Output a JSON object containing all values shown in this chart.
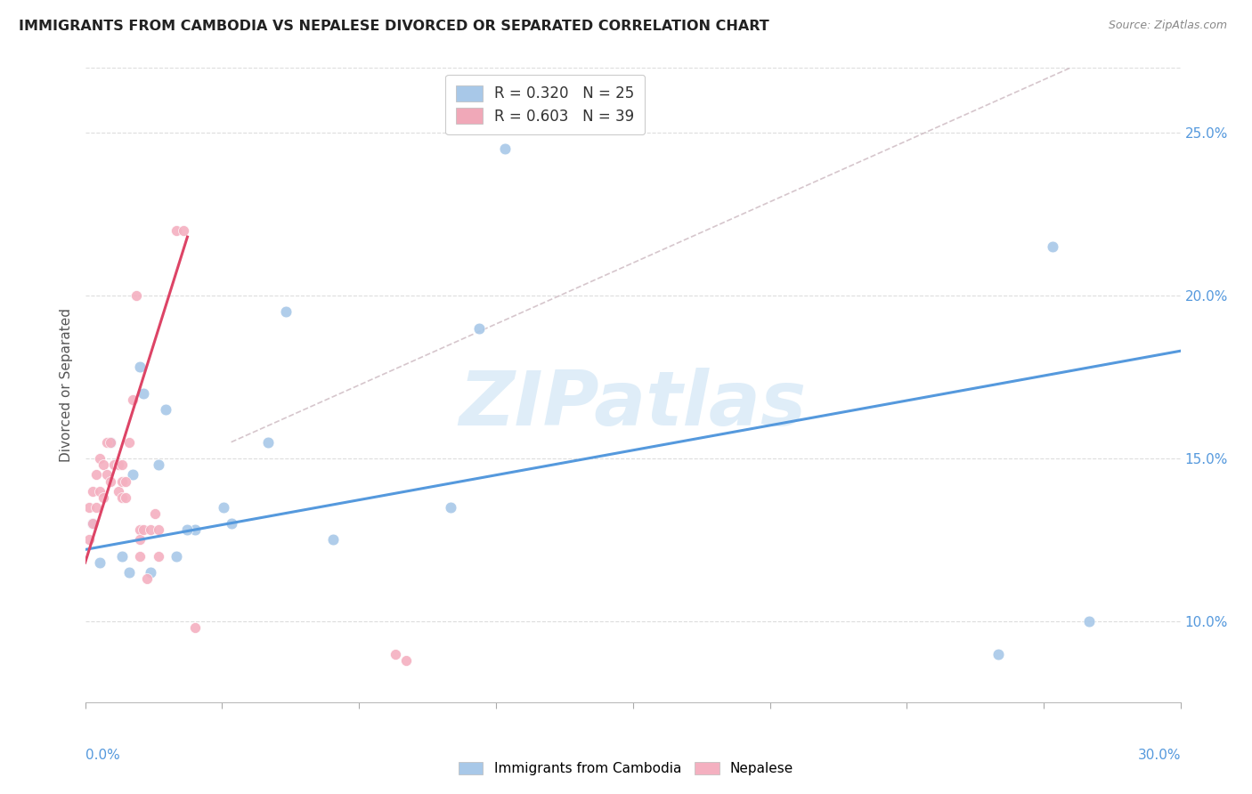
{
  "title": "IMMIGRANTS FROM CAMBODIA VS NEPALESE DIVORCED OR SEPARATED CORRELATION CHART",
  "source": "Source: ZipAtlas.com",
  "ylabel": "Divorced or Separated",
  "right_yticks": [
    "10.0%",
    "15.0%",
    "20.0%",
    "25.0%"
  ],
  "right_ytick_vals": [
    0.1,
    0.15,
    0.2,
    0.25
  ],
  "xlim": [
    0.0,
    0.3
  ],
  "ylim": [
    0.075,
    0.27
  ],
  "watermark": "ZIPatlas",
  "legend1_label": "R = 0.320   N = 25",
  "legend2_label": "R = 0.603   N = 39",
  "legend1_color": "#a8c8e8",
  "legend2_color": "#f0a8b8",
  "series1_color": "#a8c8e8",
  "series2_color": "#f4b0c0",
  "trendline1_color": "#5599dd",
  "trendline2_color": "#dd4466",
  "diag_line_color": "#ccb8c0",
  "series1_name": "Immigrants from Cambodia",
  "series2_name": "Nepalese",
  "cambodia_x": [
    0.002,
    0.004,
    0.007,
    0.01,
    0.013,
    0.015,
    0.016,
    0.018,
    0.02,
    0.022,
    0.025,
    0.03,
    0.038,
    0.05,
    0.055,
    0.068,
    0.1,
    0.108,
    0.115,
    0.25,
    0.265,
    0.275,
    0.028,
    0.04,
    0.012
  ],
  "cambodia_y": [
    0.13,
    0.118,
    0.155,
    0.12,
    0.145,
    0.178,
    0.17,
    0.115,
    0.148,
    0.165,
    0.12,
    0.128,
    0.135,
    0.155,
    0.195,
    0.125,
    0.135,
    0.19,
    0.245,
    0.09,
    0.215,
    0.1,
    0.128,
    0.13,
    0.115
  ],
  "nepalese_x": [
    0.001,
    0.001,
    0.002,
    0.002,
    0.003,
    0.003,
    0.004,
    0.004,
    0.005,
    0.005,
    0.006,
    0.006,
    0.007,
    0.007,
    0.008,
    0.009,
    0.009,
    0.01,
    0.01,
    0.01,
    0.011,
    0.011,
    0.012,
    0.013,
    0.014,
    0.015,
    0.015,
    0.015,
    0.016,
    0.017,
    0.018,
    0.019,
    0.02,
    0.02,
    0.025,
    0.027,
    0.03,
    0.085,
    0.088
  ],
  "nepalese_y": [
    0.135,
    0.125,
    0.14,
    0.13,
    0.145,
    0.135,
    0.15,
    0.14,
    0.148,
    0.138,
    0.155,
    0.145,
    0.155,
    0.143,
    0.148,
    0.148,
    0.14,
    0.138,
    0.143,
    0.148,
    0.138,
    0.143,
    0.155,
    0.168,
    0.2,
    0.128,
    0.125,
    0.12,
    0.128,
    0.113,
    0.128,
    0.133,
    0.128,
    0.12,
    0.22,
    0.22,
    0.098,
    0.09,
    0.088
  ],
  "trendline1_x": [
    0.0,
    0.3
  ],
  "trendline1_y": [
    0.122,
    0.183
  ],
  "trendline2_x": [
    0.0,
    0.028
  ],
  "trendline2_y": [
    0.118,
    0.218
  ],
  "diag_line_x": [
    0.04,
    0.27
  ],
  "diag_line_y": [
    0.155,
    0.27
  ]
}
